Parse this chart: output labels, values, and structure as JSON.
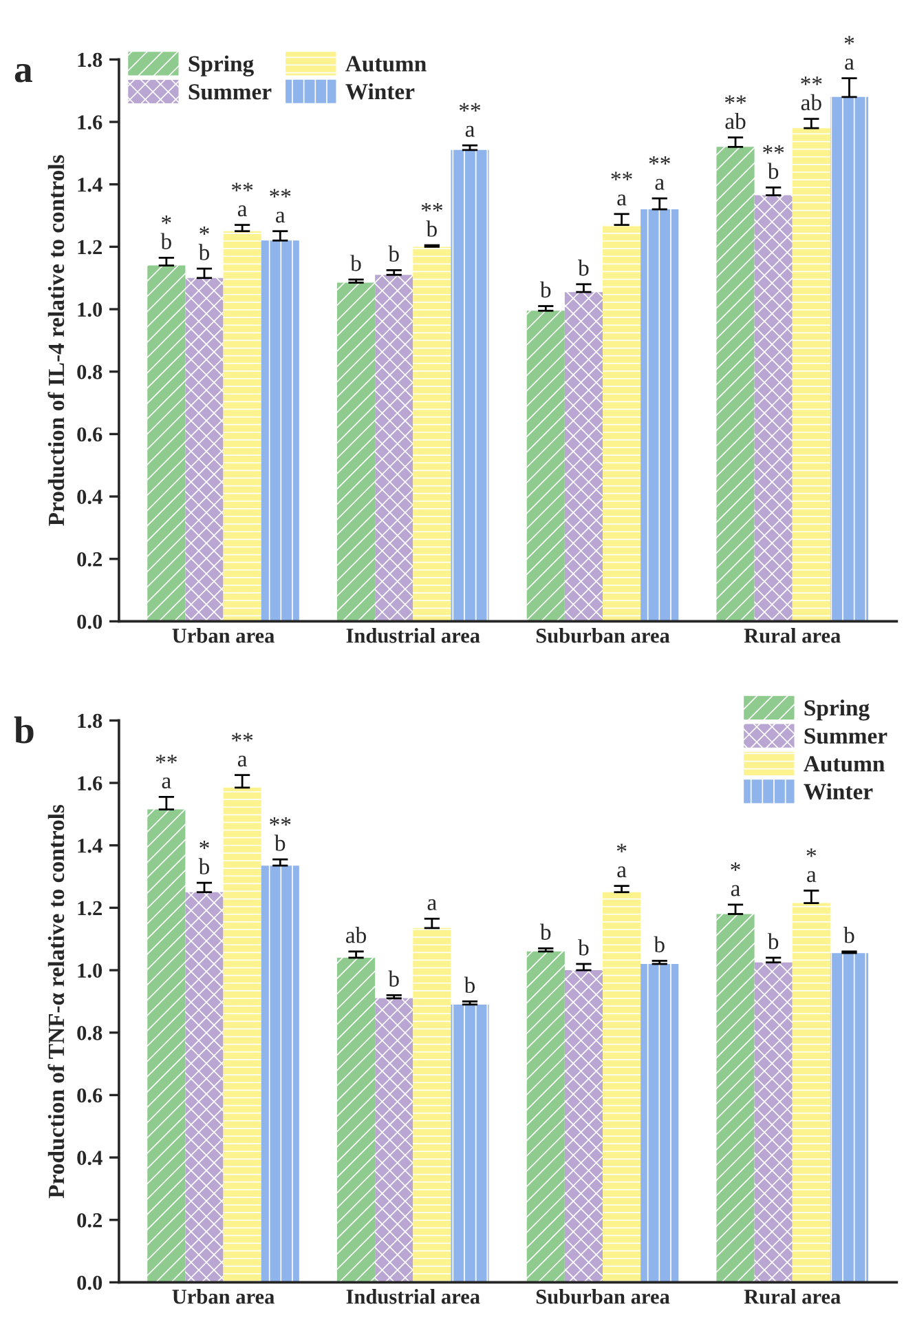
{
  "chart_data": [
    {
      "type": "bar",
      "ylabel": "Production of IL-4 relative to controls",
      "annotations": [
        "a"
      ],
      "categories": [
        "Urban area",
        "Industrial area",
        "Suburban area",
        "Rural area"
      ],
      "ylim": [
        0,
        1.8
      ],
      "yticks": [
        {
          "value": 0,
          "label": "0.0"
        },
        {
          "value": 0.2,
          "label": "0.2"
        },
        {
          "value": 0.4,
          "label": "0.4"
        },
        {
          "value": 0.6,
          "label": "0.6"
        },
        {
          "value": 0.8,
          "label": "0.8"
        },
        {
          "value": 1.0,
          "label": "1.0"
        },
        {
          "value": 1.2,
          "label": "1.2"
        },
        {
          "value": 1.4,
          "label": "1.4"
        },
        {
          "value": 1.6,
          "label": "1.6"
        },
        {
          "value": 1.8,
          "label": "1.8"
        }
      ],
      "legend": "top left",
      "series": [
        {
          "name": "Spring",
          "color": "#8fcb8f",
          "values": [
            1.14,
            1.085,
            0.995,
            1.52
          ],
          "errors": [
            0.025,
            0.01,
            0.015,
            0.03
          ],
          "value_labels": [
            "*\nb",
            "b",
            "b",
            "**\nab"
          ]
        },
        {
          "name": "Summer",
          "color": "#b9a6d3",
          "values": [
            1.1,
            1.11,
            1.055,
            1.365
          ],
          "errors": [
            0.03,
            0.015,
            0.025,
            0.025
          ],
          "value_labels": [
            "*\nb",
            "b",
            "b",
            "**\nb"
          ]
        },
        {
          "name": "Autumn",
          "color": "#fdf38e",
          "values": [
            1.25,
            1.2,
            1.27,
            1.58
          ],
          "errors": [
            0.02,
            0.005,
            0.035,
            0.03
          ],
          "value_labels": [
            "**\na",
            "**\nb",
            "**\na",
            "**\nab"
          ]
        },
        {
          "name": "Winter",
          "color": "#8fb3eb",
          "values": [
            1.22,
            1.51,
            1.32,
            1.68
          ],
          "errors": [
            0.03,
            0.015,
            0.035,
            0.06
          ],
          "value_labels": [
            "**\na",
            "**\na",
            "**\na",
            "*\na"
          ]
        }
      ]
    },
    {
      "type": "bar",
      "ylabel": "Production of TNF-α relative to controls",
      "annotations": [
        "b"
      ],
      "categories": [
        "Urban area",
        "Industrial area",
        "Suburban area",
        "Rural area"
      ],
      "ylim": [
        0,
        1.8
      ],
      "yticks": [
        {
          "value": 0,
          "label": "0.0"
        },
        {
          "value": 0.2,
          "label": "0.2"
        },
        {
          "value": 0.4,
          "label": "0.4"
        },
        {
          "value": 0.6,
          "label": "0.6"
        },
        {
          "value": 0.8,
          "label": "0.8"
        },
        {
          "value": 1.0,
          "label": "1.0"
        },
        {
          "value": 1.2,
          "label": "1.2"
        },
        {
          "value": 1.4,
          "label": "1.4"
        },
        {
          "value": 1.6,
          "label": "1.6"
        },
        {
          "value": 1.8,
          "label": "1.8"
        }
      ],
      "legend": "top right",
      "series": [
        {
          "name": "Spring",
          "color": "#8fcb8f",
          "values": [
            1.515,
            1.04,
            1.06,
            1.18
          ],
          "errors": [
            0.04,
            0.02,
            0.01,
            0.03
          ],
          "value_labels": [
            "**\na",
            "ab",
            "b",
            "*\na"
          ]
        },
        {
          "name": "Summer",
          "color": "#b9a6d3",
          "values": [
            1.25,
            0.91,
            1.0,
            1.025
          ],
          "errors": [
            0.03,
            0.01,
            0.02,
            0.015
          ],
          "value_labels": [
            "*\nb",
            "b",
            "b",
            "b"
          ]
        },
        {
          "name": "Autumn",
          "color": "#fdf38e",
          "values": [
            1.585,
            1.135,
            1.25,
            1.215
          ],
          "errors": [
            0.04,
            0.03,
            0.02,
            0.04
          ],
          "value_labels": [
            "**\na",
            "a",
            "*\na",
            "*\na"
          ]
        },
        {
          "name": "Winter",
          "color": "#8fb3eb",
          "values": [
            1.335,
            0.89,
            1.02,
            1.055
          ],
          "errors": [
            0.02,
            0.01,
            0.01,
            0.005
          ],
          "value_labels": [
            "**\nb",
            "b",
            "b",
            "b"
          ]
        }
      ]
    }
  ]
}
